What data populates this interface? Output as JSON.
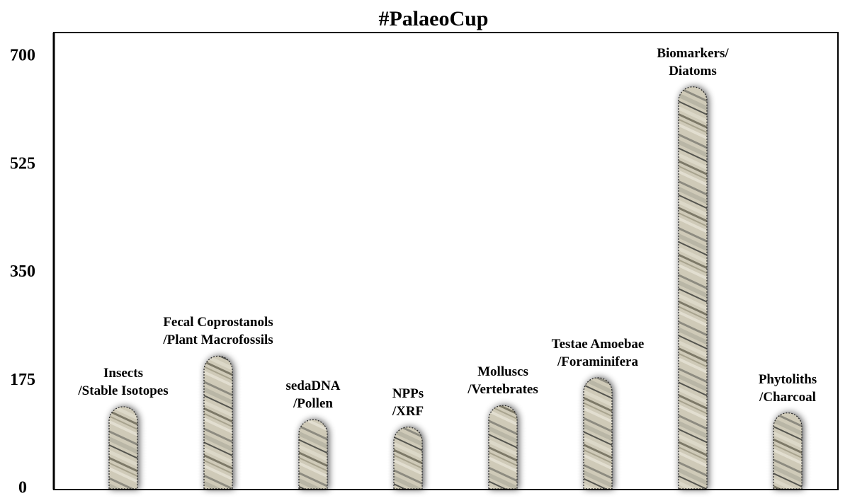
{
  "chart_data": {
    "type": "bar",
    "title": "#PalaeoCup",
    "categories": [
      "Insects\n/Stable Isotopes",
      "Fecal Coprostanols\n/Plant Macrofossils",
      "sedaDNA\n/Pollen",
      "NPPs\n/XRF",
      "Molluscs\n/Vertebrates",
      "Testae Amoebae\n/Foraminifera",
      "Biomarkers/\nDiatoms",
      "Phytoliths\n/Charcoal"
    ],
    "values": [
      133,
      215,
      112,
      100,
      135,
      180,
      651,
      123
    ],
    "color": "#c9c3b0",
    "ylim": [
      0,
      700
    ],
    "yticks": [
      0,
      175,
      350,
      525,
      700
    ],
    "grid": false
  }
}
